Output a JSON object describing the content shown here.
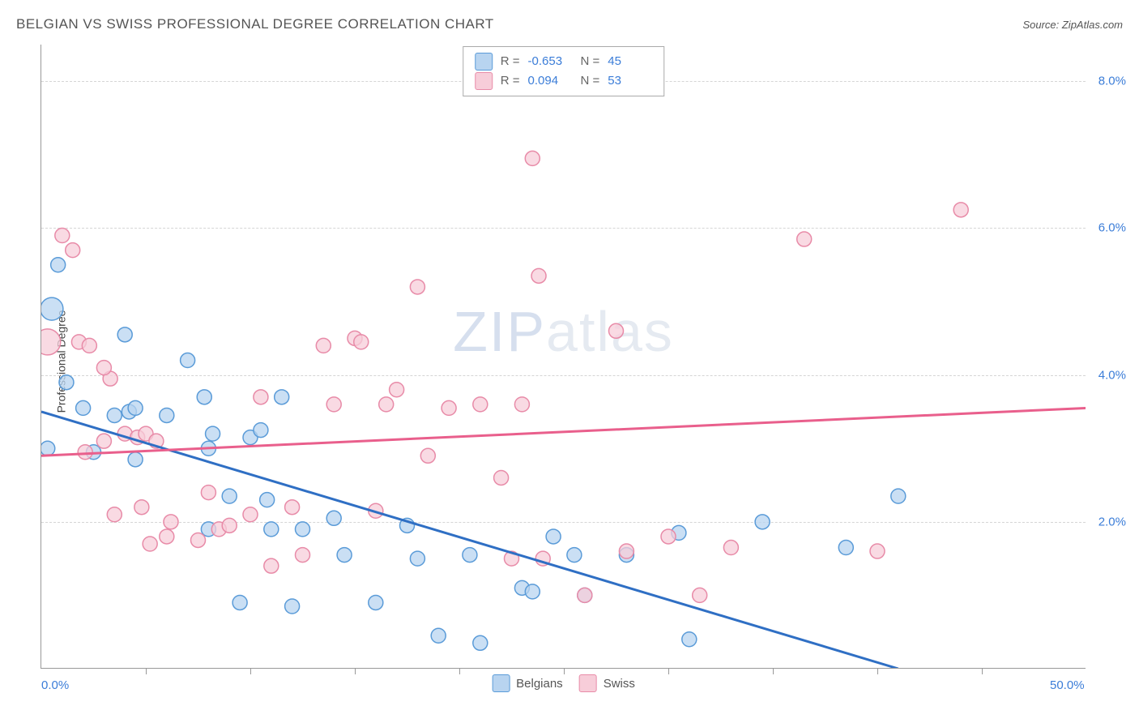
{
  "title": "BELGIAN VS SWISS PROFESSIONAL DEGREE CORRELATION CHART",
  "source_label": "Source: ZipAtlas.com",
  "y_axis_title": "Professional Degree",
  "watermark_a": "ZIP",
  "watermark_b": "atlas",
  "chart": {
    "type": "scatter",
    "xlim": [
      0,
      50
    ],
    "ylim": [
      0,
      8.5
    ],
    "x_ticks_major": [
      0,
      50
    ],
    "x_tick_labels": [
      "0.0%",
      "50.0%"
    ],
    "x_ticks_minor": [
      5,
      10,
      15,
      20,
      25,
      30,
      35,
      40,
      45
    ],
    "y_ticks": [
      2,
      4,
      6,
      8
    ],
    "y_tick_labels": [
      "2.0%",
      "4.0%",
      "6.0%",
      "8.0%"
    ],
    "grid_color": "#d5d5d5",
    "axis_color": "#999999",
    "background": "#ffffff",
    "series": [
      {
        "name": "Belgians",
        "fill": "#b8d4f0",
        "stroke": "#5a9bd8",
        "marker_r": 9,
        "trend_color": "#2f6fc4",
        "trend_width": 3,
        "R": "-0.653",
        "N": "45",
        "trend": {
          "x1": 0,
          "y1": 3.5,
          "x2": 41,
          "y2": 0
        },
        "points": [
          {
            "x": 0.5,
            "y": 4.9,
            "r": 14
          },
          {
            "x": 0.8,
            "y": 5.5
          },
          {
            "x": 1.2,
            "y": 3.9
          },
          {
            "x": 2.0,
            "y": 3.55
          },
          {
            "x": 2.5,
            "y": 2.95
          },
          {
            "x": 3.5,
            "y": 3.45
          },
          {
            "x": 4.0,
            "y": 4.55
          },
          {
            "x": 4.2,
            "y": 3.5
          },
          {
            "x": 4.5,
            "y": 2.85
          },
          {
            "x": 4.5,
            "y": 3.55
          },
          {
            "x": 6.0,
            "y": 3.45
          },
          {
            "x": 7.0,
            "y": 4.2
          },
          {
            "x": 7.8,
            "y": 3.7
          },
          {
            "x": 8.0,
            "y": 3.0
          },
          {
            "x": 8.0,
            "y": 1.9
          },
          {
            "x": 8.2,
            "y": 3.2
          },
          {
            "x": 9.0,
            "y": 2.35
          },
          {
            "x": 9.5,
            "y": 0.9
          },
          {
            "x": 10.0,
            "y": 3.15
          },
          {
            "x": 10.5,
            "y": 3.25
          },
          {
            "x": 10.8,
            "y": 2.3
          },
          {
            "x": 11.0,
            "y": 1.9
          },
          {
            "x": 11.5,
            "y": 3.7
          },
          {
            "x": 12.0,
            "y": 0.85
          },
          {
            "x": 12.5,
            "y": 1.9
          },
          {
            "x": 14.0,
            "y": 2.05
          },
          {
            "x": 14.5,
            "y": 1.55
          },
          {
            "x": 16.0,
            "y": 0.9
          },
          {
            "x": 17.5,
            "y": 1.95
          },
          {
            "x": 18.0,
            "y": 1.5
          },
          {
            "x": 19.0,
            "y": 0.45
          },
          {
            "x": 20.5,
            "y": 1.55
          },
          {
            "x": 21.0,
            "y": 0.35
          },
          {
            "x": 23.0,
            "y": 1.1
          },
          {
            "x": 23.5,
            "y": 1.05
          },
          {
            "x": 24.5,
            "y": 1.8
          },
          {
            "x": 25.5,
            "y": 1.55
          },
          {
            "x": 26.0,
            "y": 1.0
          },
          {
            "x": 28.0,
            "y": 1.55
          },
          {
            "x": 30.5,
            "y": 1.85
          },
          {
            "x": 31.0,
            "y": 0.4
          },
          {
            "x": 34.5,
            "y": 2.0
          },
          {
            "x": 38.5,
            "y": 1.65
          },
          {
            "x": 41.0,
            "y": 2.35
          },
          {
            "x": 0.3,
            "y": 3.0
          }
        ]
      },
      {
        "name": "Swiss",
        "fill": "#f7cdd9",
        "stroke": "#e88ba8",
        "marker_r": 9,
        "trend_color": "#e95f8c",
        "trend_width": 3,
        "R": "0.094",
        "N": "53",
        "trend": {
          "x1": 0,
          "y1": 2.9,
          "x2": 50,
          "y2": 3.55
        },
        "points": [
          {
            "x": 0.3,
            "y": 4.45,
            "r": 16
          },
          {
            "x": 1.0,
            "y": 5.9
          },
          {
            "x": 1.5,
            "y": 5.7
          },
          {
            "x": 1.8,
            "y": 4.45
          },
          {
            "x": 2.3,
            "y": 4.4
          },
          {
            "x": 3.0,
            "y": 3.1
          },
          {
            "x": 3.3,
            "y": 3.95
          },
          {
            "x": 3.5,
            "y": 2.1
          },
          {
            "x": 4.0,
            "y": 3.2
          },
          {
            "x": 4.6,
            "y": 3.15
          },
          {
            "x": 4.8,
            "y": 2.2
          },
          {
            "x": 5.0,
            "y": 3.2
          },
          {
            "x": 5.2,
            "y": 1.7
          },
          {
            "x": 5.5,
            "y": 3.1
          },
          {
            "x": 6.0,
            "y": 1.8
          },
          {
            "x": 6.2,
            "y": 2.0
          },
          {
            "x": 7.5,
            "y": 1.75
          },
          {
            "x": 8.0,
            "y": 2.4
          },
          {
            "x": 8.5,
            "y": 1.9
          },
          {
            "x": 9.0,
            "y": 1.95
          },
          {
            "x": 10.0,
            "y": 2.1
          },
          {
            "x": 10.5,
            "y": 3.7
          },
          {
            "x": 11.0,
            "y": 1.4
          },
          {
            "x": 12.0,
            "y": 2.2
          },
          {
            "x": 12.5,
            "y": 1.55
          },
          {
            "x": 13.5,
            "y": 4.4
          },
          {
            "x": 14.0,
            "y": 3.6
          },
          {
            "x": 15.0,
            "y": 4.5
          },
          {
            "x": 15.3,
            "y": 4.45
          },
          {
            "x": 16.0,
            "y": 2.15
          },
          {
            "x": 16.5,
            "y": 3.6
          },
          {
            "x": 17.0,
            "y": 3.8
          },
          {
            "x": 18.0,
            "y": 5.2
          },
          {
            "x": 18.5,
            "y": 2.9
          },
          {
            "x": 19.5,
            "y": 3.55
          },
          {
            "x": 21.0,
            "y": 3.6
          },
          {
            "x": 22.0,
            "y": 2.6
          },
          {
            "x": 22.5,
            "y": 1.5
          },
          {
            "x": 23.0,
            "y": 3.6
          },
          {
            "x": 23.5,
            "y": 6.95
          },
          {
            "x": 23.8,
            "y": 5.35
          },
          {
            "x": 24.0,
            "y": 1.5
          },
          {
            "x": 26.0,
            "y": 1.0
          },
          {
            "x": 27.5,
            "y": 4.6
          },
          {
            "x": 28.0,
            "y": 1.6
          },
          {
            "x": 30.0,
            "y": 1.8
          },
          {
            "x": 31.5,
            "y": 1.0
          },
          {
            "x": 33.0,
            "y": 1.65
          },
          {
            "x": 36.5,
            "y": 5.85
          },
          {
            "x": 40.0,
            "y": 1.6
          },
          {
            "x": 44.0,
            "y": 6.25
          },
          {
            "x": 3.0,
            "y": 4.1
          },
          {
            "x": 2.1,
            "y": 2.95
          }
        ]
      }
    ]
  },
  "legend_bottom": [
    {
      "label": "Belgians",
      "fill": "#b8d4f0",
      "stroke": "#5a9bd8"
    },
    {
      "label": "Swiss",
      "fill": "#f7cdd9",
      "stroke": "#e88ba8"
    }
  ]
}
